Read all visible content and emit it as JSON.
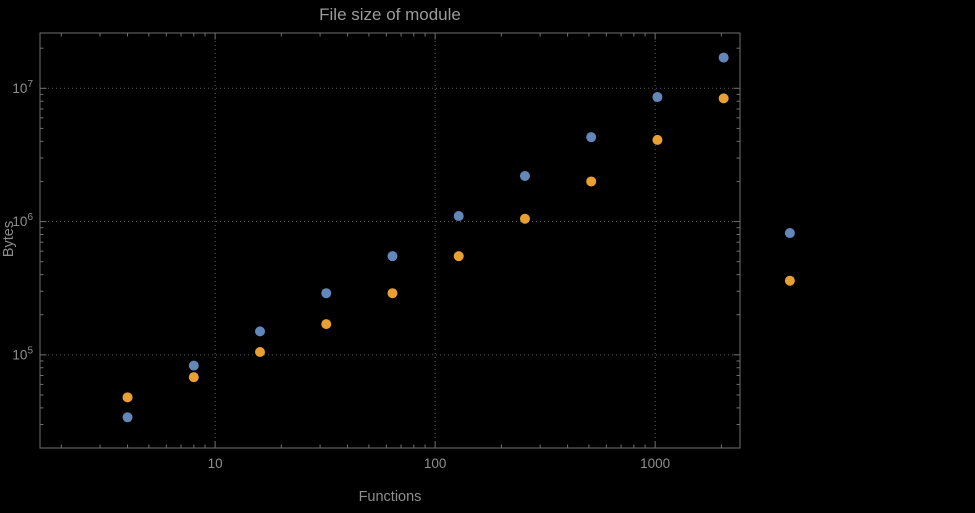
{
  "chart_data": {
    "type": "scatter",
    "title": "File size of module",
    "xlabel": "Functions",
    "ylabel": "Bytes",
    "x_scale": "log",
    "y_scale": "log",
    "xlim": [
      1.6,
      2430
    ],
    "ylim": [
      20000,
      26000000
    ],
    "background": "#000000",
    "frame_color": "#6f6f6f",
    "text_color": "#8e8e8e",
    "grid": {
      "style": "dotted",
      "color": "#5a5a5a",
      "x_values": [
        10,
        100,
        1000
      ],
      "y_values": [
        100000,
        1000000,
        10000000
      ]
    },
    "x_ticks": [
      {
        "value": 10,
        "label": "10"
      },
      {
        "value": 100,
        "label": "100"
      },
      {
        "value": 1000,
        "label": "1000"
      }
    ],
    "y_ticks": [
      {
        "exp": 5
      },
      {
        "exp": 6
      },
      {
        "exp": 7
      }
    ],
    "legend": "none",
    "series": [
      {
        "name": "series-1",
        "color": "#6487ba",
        "points": [
          [
            4,
            34000
          ],
          [
            8,
            83000
          ],
          [
            16,
            150000
          ],
          [
            32,
            290000
          ],
          [
            64,
            550000
          ],
          [
            128,
            1100000
          ],
          [
            256,
            2200000
          ],
          [
            512,
            4300000
          ],
          [
            1024,
            8600000
          ],
          [
            2048,
            17000000
          ],
          [
            4096,
            820000
          ]
        ]
      },
      {
        "name": "series-2",
        "color": "#e8a032",
        "points": [
          [
            4,
            48000
          ],
          [
            8,
            68000
          ],
          [
            16,
            105000
          ],
          [
            32,
            170000
          ],
          [
            64,
            290000
          ],
          [
            128,
            550000
          ],
          [
            256,
            1050000
          ],
          [
            512,
            2000000
          ],
          [
            1024,
            4100000
          ],
          [
            2048,
            8400000
          ],
          [
            4096,
            360000
          ]
        ]
      }
    ]
  }
}
